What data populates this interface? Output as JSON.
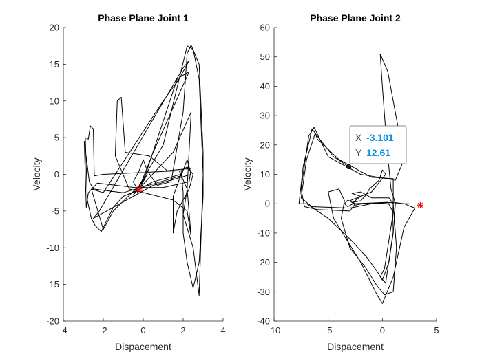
{
  "chart_data": [
    {
      "type": "line",
      "title": "Phase Plane Joint 1",
      "xlabel": "Dispacement",
      "ylabel": "Velocity",
      "xlim": [
        -4,
        4
      ],
      "ylim": [
        -20,
        20
      ],
      "xticks": [
        -4,
        -2,
        0,
        2,
        4
      ],
      "yticks": [
        -20,
        -15,
        -10,
        -5,
        0,
        5,
        10,
        15,
        20
      ],
      "grid": false,
      "series": [
        {
          "color": "#000000",
          "points": [
            [
              -0.3,
              -2.0
            ],
            [
              -0.5,
              -1.0
            ],
            [
              -0.2,
              0.5
            ],
            [
              0.0,
              2.0
            ],
            [
              0.2,
              0.5
            ],
            [
              0.7,
              -1.5
            ],
            [
              1.4,
              -1.0
            ],
            [
              2.0,
              8.5
            ],
            [
              2.2,
              16.5
            ],
            [
              2.4,
              17.6
            ],
            [
              2.8,
              15.0
            ],
            [
              3.0,
              3.0
            ],
            [
              3.0,
              -3.0
            ],
            [
              2.8,
              -12.0
            ],
            [
              2.5,
              -15.5
            ],
            [
              2.2,
              -12.0
            ],
            [
              2.0,
              -8.0
            ],
            [
              2.0,
              -2.5
            ],
            [
              1.9,
              0.5
            ],
            [
              2.2,
              1.0
            ],
            [
              2.5,
              0.0
            ],
            [
              2.3,
              -2.0
            ],
            [
              1.7,
              -5.0
            ],
            [
              1.5,
              -8.0
            ],
            [
              1.5,
              -3.0
            ],
            [
              1.9,
              0.0
            ],
            [
              0.5,
              -1.0
            ],
            [
              -0.3,
              -2.2
            ],
            [
              -1.0,
              -3.0
            ],
            [
              -1.5,
              -4.5
            ],
            [
              -2.1,
              -7.8
            ],
            [
              -2.4,
              -7.0
            ],
            [
              -2.6,
              -6.0
            ],
            [
              -2.8,
              -3.5
            ],
            [
              -2.9,
              5.0
            ],
            [
              -2.75,
              4.8
            ],
            [
              -2.65,
              6.6
            ],
            [
              -2.5,
              6.2
            ],
            [
              -2.45,
              -0.2
            ],
            [
              -2.0,
              0.0
            ],
            [
              1.8,
              0.5
            ],
            [
              2.2,
              -2.0
            ],
            [
              2.4,
              -8.5
            ],
            [
              2.2,
              -5.0
            ],
            [
              1.5,
              -3.5
            ],
            [
              -0.7,
              -2.0
            ],
            [
              -1.4,
              2.5
            ],
            [
              -1.3,
              10.0
            ],
            [
              -1.1,
              10.5
            ],
            [
              -0.9,
              3.0
            ],
            [
              0.3,
              2.5
            ],
            [
              1.2,
              0.5
            ],
            [
              2.4,
              0.8
            ],
            [
              2.3,
              -1.0
            ],
            [
              1.0,
              -1.8
            ],
            [
              -0.4,
              -1.8
            ],
            [
              -2.3,
              -1.2
            ],
            [
              -2.75,
              -2.5
            ],
            [
              -2.85,
              -4.5
            ],
            [
              -2.95,
              4.5
            ],
            [
              -2.7,
              -1.0
            ],
            [
              -2.5,
              -2.0
            ],
            [
              -1.0,
              -2.5
            ],
            [
              1.9,
              -0.2
            ],
            [
              2.2,
              2.0
            ],
            [
              2.4,
              0.0
            ],
            [
              0.5,
              -1.5
            ],
            [
              -2.5,
              -6.0
            ],
            [
              -2.2,
              -5.0
            ],
            [
              2.0,
              14.5
            ],
            [
              2.3,
              15.5
            ],
            [
              1.8,
              13.0
            ],
            [
              1.0,
              10.0
            ],
            [
              -2.0,
              -2.5
            ],
            [
              -2.6,
              -2.0
            ],
            [
              -2.0,
              -7.5
            ],
            [
              -1.5,
              -5.0
            ],
            [
              0.0,
              -1.0
            ],
            [
              1.7,
              13.0
            ],
            [
              2.3,
              14.0
            ],
            [
              0.5,
              3.0
            ],
            [
              -0.3,
              -2.5
            ],
            [
              0.2,
              0.0
            ],
            [
              -0.5,
              -2.8
            ],
            [
              1.5,
              3.0
            ],
            [
              2.4,
              8.5
            ],
            [
              2.2,
              -2.0
            ],
            [
              2.0,
              -5.5
            ],
            [
              2.5,
              -10.0
            ],
            [
              2.8,
              -16.5
            ],
            [
              3.0,
              0.0
            ],
            [
              2.8,
              13.0
            ],
            [
              2.5,
              17.0
            ],
            [
              2.2,
              17.5
            ],
            [
              1.0,
              4.0
            ],
            [
              -0.2,
              -1.5
            ]
          ]
        }
      ],
      "marker": {
        "symbol": "asterisk",
        "color": "#ff0000",
        "x": -0.2,
        "y": -2.0
      }
    },
    {
      "type": "line",
      "title": "Phase Plane Joint 2",
      "xlabel": "Dispacement",
      "ylabel": "Velocity",
      "xlim": [
        -10,
        5
      ],
      "ylim": [
        -40,
        60
      ],
      "xticks": [
        -10,
        -5,
        0,
        5
      ],
      "yticks": [
        -40,
        -30,
        -20,
        -10,
        0,
        10,
        20,
        30,
        40,
        50,
        60
      ],
      "grid": false,
      "series": [
        {
          "color": "#000000",
          "points": [
            [
              -3.1,
              12.6
            ],
            [
              -4.5,
              16.0
            ],
            [
              -6.0,
              23.0
            ],
            [
              -6.5,
              25.5
            ],
            [
              -6.7,
              22.0
            ],
            [
              -7.3,
              13.0
            ],
            [
              -7.7,
              0.0
            ],
            [
              -7.0,
              0.0
            ],
            [
              -5.0,
              -5.0
            ],
            [
              -3.0,
              -12.0
            ],
            [
              -1.5,
              -18.0
            ],
            [
              -0.5,
              -23.0
            ],
            [
              0.0,
              -26.0
            ],
            [
              0.6,
              -20.0
            ],
            [
              1.0,
              -10.0
            ],
            [
              1.2,
              0.0
            ],
            [
              0.8,
              5.0
            ],
            [
              0.4,
              20.0
            ],
            [
              0.0,
              40.0
            ],
            [
              -0.2,
              51.0
            ],
            [
              0.5,
              45.0
            ],
            [
              2.0,
              15.0
            ],
            [
              1.2,
              8.0
            ],
            [
              -2.0,
              10.0
            ],
            [
              -5.0,
              16.0
            ],
            [
              -6.3,
              26.0
            ],
            [
              -6.8,
              23.0
            ],
            [
              -7.5,
              5.0
            ],
            [
              -7.2,
              -1.0
            ],
            [
              -6.0,
              -2.0
            ],
            [
              -3.0,
              -2.5
            ],
            [
              -2.5,
              0.0
            ],
            [
              -3.2,
              1.2
            ],
            [
              -3.5,
              0.0
            ],
            [
              -3.2,
              -1.0
            ],
            [
              -2.7,
              0.0
            ],
            [
              0.5,
              0.5
            ],
            [
              1.0,
              -3.0
            ],
            [
              0.2,
              -22.0
            ],
            [
              -0.2,
              -25.0
            ],
            [
              0.3,
              -27.0
            ],
            [
              0.9,
              -12.0
            ],
            [
              1.0,
              0.0
            ],
            [
              1.0,
              8.5
            ],
            [
              -1.0,
              9.0
            ],
            [
              -4.0,
              15.0
            ],
            [
              -6.0,
              22.0
            ],
            [
              -6.2,
              24.0
            ],
            [
              -7.0,
              15.0
            ],
            [
              -7.5,
              2.0
            ],
            [
              -6.5,
              -1.0
            ],
            [
              -3.0,
              -1.5
            ],
            [
              -1.0,
              0.0
            ],
            [
              1.0,
              0.5
            ],
            [
              2.0,
              0.0
            ],
            [
              3.0,
              -1.5
            ],
            [
              2.0,
              -8.0
            ],
            [
              1.0,
              -25.0
            ],
            [
              0.0,
              -34.0
            ],
            [
              -0.5,
              -31.0
            ],
            [
              -2.0,
              -20.0
            ],
            [
              -4.5,
              -5.0
            ],
            [
              -5.0,
              4.0
            ],
            [
              -4.0,
              5.0
            ],
            [
              -3.5,
              1.0
            ],
            [
              -3.8,
              -5.0
            ],
            [
              -3.0,
              -15.0
            ],
            [
              -1.5,
              -22.0
            ],
            [
              -0.5,
              -28.0
            ],
            [
              0.2,
              -31.0
            ],
            [
              1.0,
              -30.0
            ],
            [
              1.3,
              -15.0
            ],
            [
              1.0,
              0.0
            ],
            [
              0.6,
              2.0
            ],
            [
              -1.0,
              2.0
            ],
            [
              -2.0,
              4.0
            ],
            [
              -2.8,
              3.5
            ],
            [
              -2.0,
              2.5
            ],
            [
              -2.7,
              0.5
            ],
            [
              -2.0,
              1.0
            ],
            [
              -1.5,
              3.0
            ],
            [
              -1.2,
              5.0
            ],
            [
              -0.3,
              8.0
            ],
            [
              0.0,
              11.5
            ],
            [
              0.3,
              10.0
            ],
            [
              -1.0,
              4.0
            ],
            [
              -3.0,
              1.0
            ],
            [
              -2.5,
              -0.5
            ],
            [
              -1.8,
              0.0
            ],
            [
              1.0,
              0.0
            ],
            [
              2.5,
              0.0
            ]
          ]
        }
      ],
      "marker": {
        "symbol": "asterisk",
        "color": "#ff0000",
        "x": 3.5,
        "y": -0.5
      },
      "datatip": {
        "point_x": -3.101,
        "point_y": 12.61,
        "x_key": "X",
        "x_value": "-3.101",
        "y_key": "Y",
        "y_value": "12.61",
        "value_color": "#0a8fe0"
      }
    }
  ]
}
